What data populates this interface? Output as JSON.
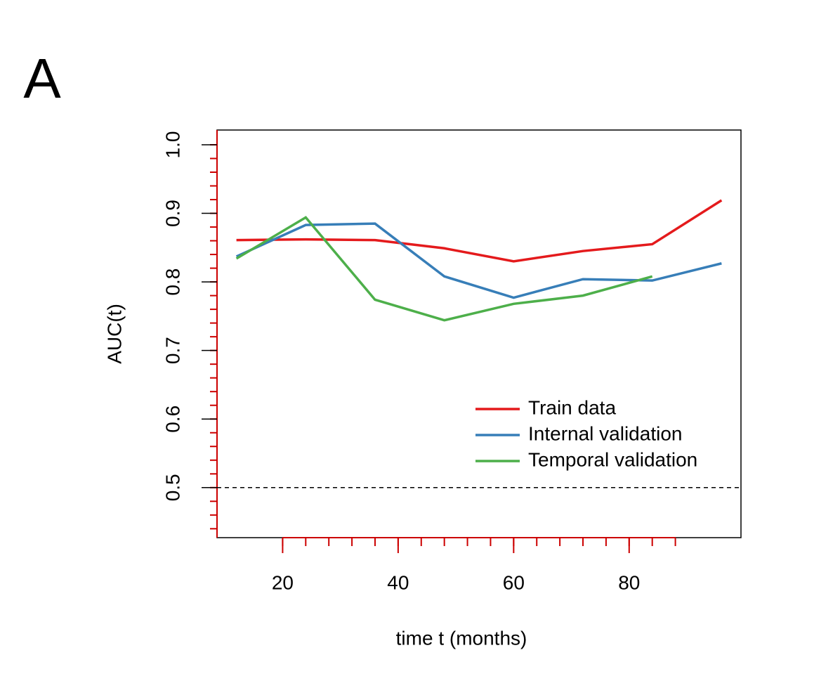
{
  "chart_data": {
    "type": "line",
    "panel_label": "A",
    "xlabel": "time t (months)",
    "ylabel": "AUC(t)",
    "x": [
      12,
      24,
      36,
      48,
      60,
      72,
      84,
      96
    ],
    "series": [
      {
        "name": "Train data",
        "color": "#e41a1c",
        "values": [
          0.861,
          0.862,
          0.861,
          0.849,
          0.83,
          0.845,
          0.855,
          0.919
        ]
      },
      {
        "name": "Internal validation",
        "color": "#377eb8",
        "values": [
          0.837,
          0.883,
          0.885,
          0.808,
          0.777,
          0.804,
          0.802,
          0.827
        ]
      },
      {
        "name": "Temporal validation",
        "color": "#4daf4a",
        "values": [
          0.834,
          0.894,
          0.774,
          0.744,
          0.768,
          0.78,
          0.808,
          null
        ]
      }
    ],
    "xlim": [
      8.64,
      99.36
    ],
    "ylim": [
      0.427,
      1.0215
    ],
    "xticks": [
      20,
      40,
      60,
      80
    ],
    "yticks": [
      0.5,
      0.6,
      0.7,
      0.8,
      0.9,
      {
        "value": 1,
        "label": "1.0"
      }
    ],
    "xminorticks": [
      20,
      24,
      28,
      32,
      36,
      40,
      44,
      48,
      52,
      56,
      60,
      64,
      68,
      72,
      76,
      80,
      84,
      88
    ],
    "yminorticks": [
      0.44,
      0.46,
      0.48,
      0.5,
      0.52,
      0.54,
      0.56,
      0.58,
      0.6,
      0.62,
      0.64,
      0.66,
      0.68,
      0.7,
      0.72,
      0.74,
      0.76,
      0.78,
      0.8,
      0.82,
      0.84,
      0.86,
      0.88,
      0.9,
      0.92,
      0.94,
      0.96,
      0.98,
      1
    ],
    "minor_tick_color": "#cc0000",
    "hline": 0.5,
    "legend": "bottom-right"
  }
}
